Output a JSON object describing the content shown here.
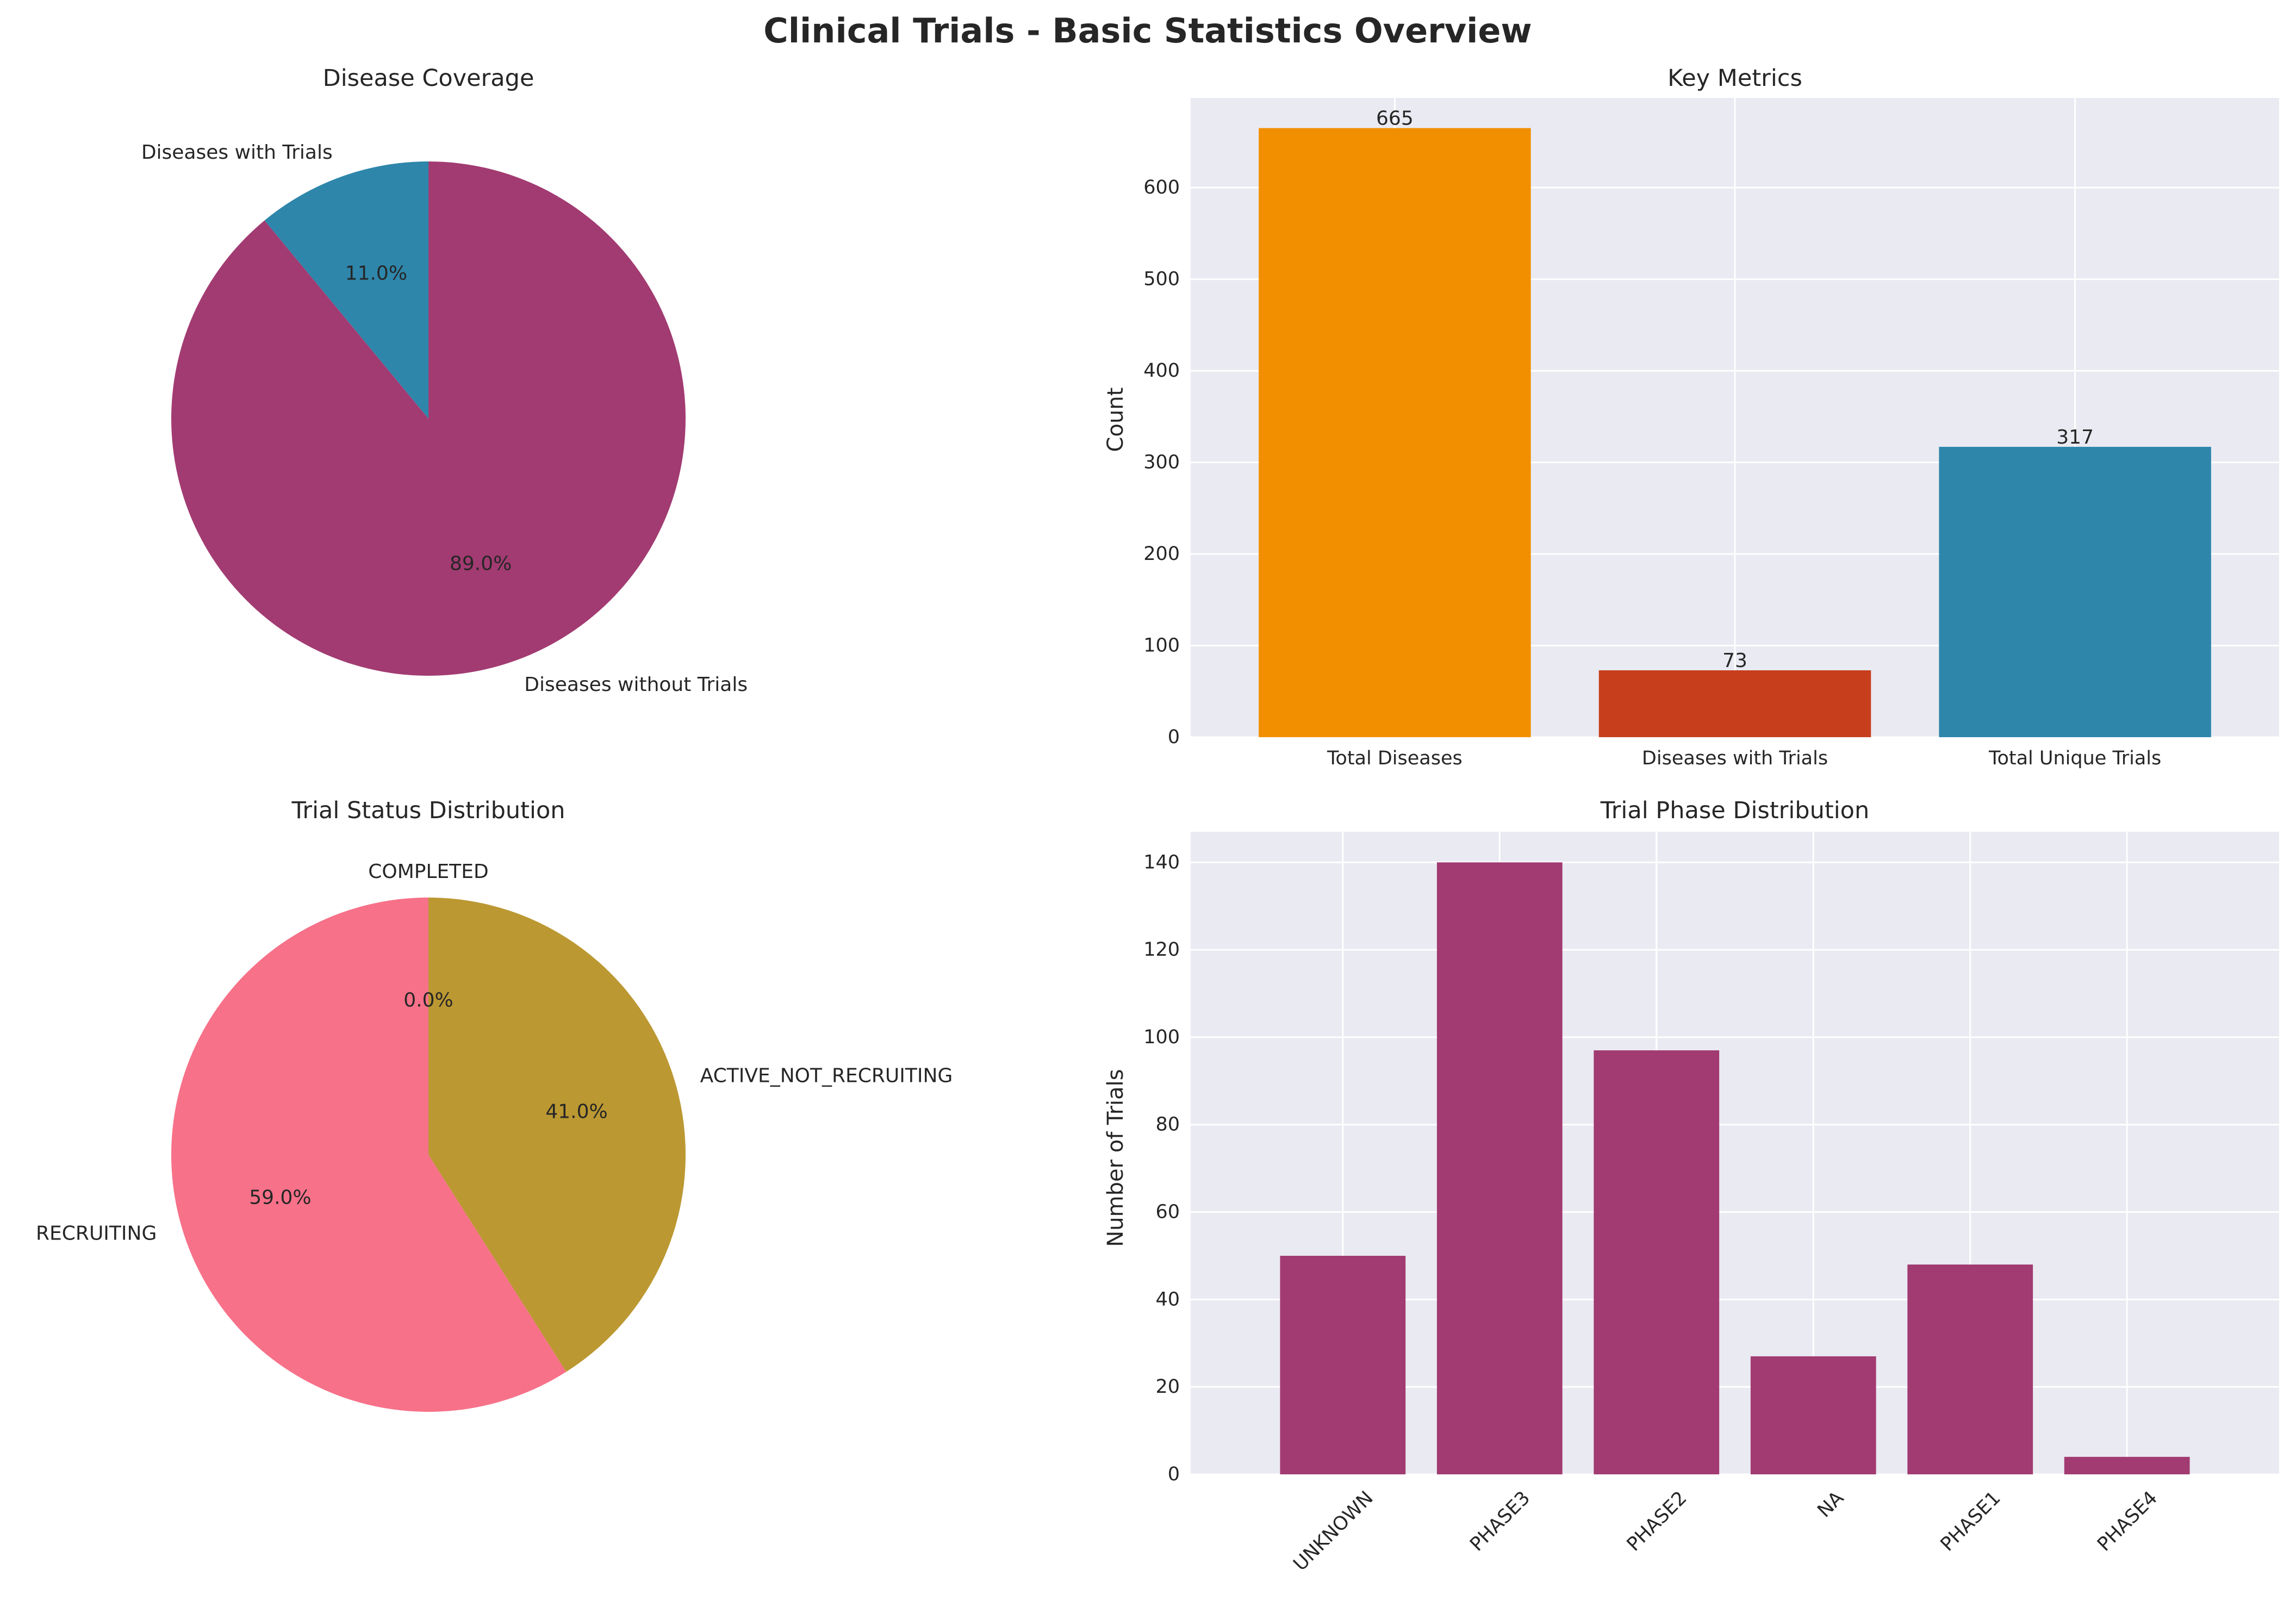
{
  "suptitle": "Clinical Trials - Basic Statistics Overview",
  "colors": {
    "axes_bg": "#eaeaf2",
    "grid": "#ffffff",
    "plum": "#a23b72",
    "teal": "#2e86ab",
    "orange": "#f18f01",
    "rust": "#c73e1d",
    "pink": "#f77189",
    "olive": "#bb9832",
    "text": "#262626"
  },
  "chart_data": [
    {
      "type": "pie",
      "title": "Disease Coverage",
      "start_angle_deg": 90,
      "slices": [
        {
          "label": "Diseases with Trials",
          "value": 11.0,
          "pct_label": "11.0%",
          "color": "#2e86ab"
        },
        {
          "label": "Diseases without Trials",
          "value": 89.0,
          "pct_label": "89.0%",
          "color": "#a23b72"
        }
      ]
    },
    {
      "type": "bar",
      "title": "Key Metrics",
      "xlabel": "",
      "ylabel": "Count",
      "categories": [
        "Total Diseases",
        "Diseases with Trials",
        "Total Unique Trials"
      ],
      "values": [
        665,
        73,
        317
      ],
      "value_labels": [
        "665",
        "73",
        "317"
      ],
      "colors": [
        "#f18f01",
        "#c73e1d",
        "#2e86ab"
      ],
      "ylim": [
        0,
        698
      ],
      "yticks": [
        0,
        100,
        200,
        300,
        400,
        500,
        600
      ],
      "grid": true
    },
    {
      "type": "pie",
      "title": "Trial Status Distribution",
      "start_angle_deg": 90,
      "slices": [
        {
          "label": "COMPLETED",
          "value": 0.0,
          "pct_label": "0.0%",
          "color": "#bb9832"
        },
        {
          "label": "RECRUITING",
          "value": 59.0,
          "pct_label": "59.0%",
          "color": "#f77189"
        },
        {
          "label": "ACTIVE_NOT_RECRUITING",
          "value": 41.0,
          "pct_label": "41.0%",
          "color": "#bb9832"
        }
      ]
    },
    {
      "type": "bar",
      "title": "Trial Phase Distribution",
      "xlabel": "",
      "ylabel": "Number of Trials",
      "categories": [
        "UNKNOWN",
        "PHASE3",
        "PHASE2",
        "NA",
        "PHASE1",
        "PHASE4"
      ],
      "values": [
        50,
        140,
        97,
        27,
        48,
        4
      ],
      "colors": [
        "#a23b72",
        "#a23b72",
        "#a23b72",
        "#a23b72",
        "#a23b72",
        "#a23b72"
      ],
      "ylim": [
        0,
        147
      ],
      "yticks": [
        0,
        20,
        40,
        60,
        80,
        100,
        120,
        140
      ],
      "xtick_rotation": 45,
      "grid": true
    }
  ]
}
